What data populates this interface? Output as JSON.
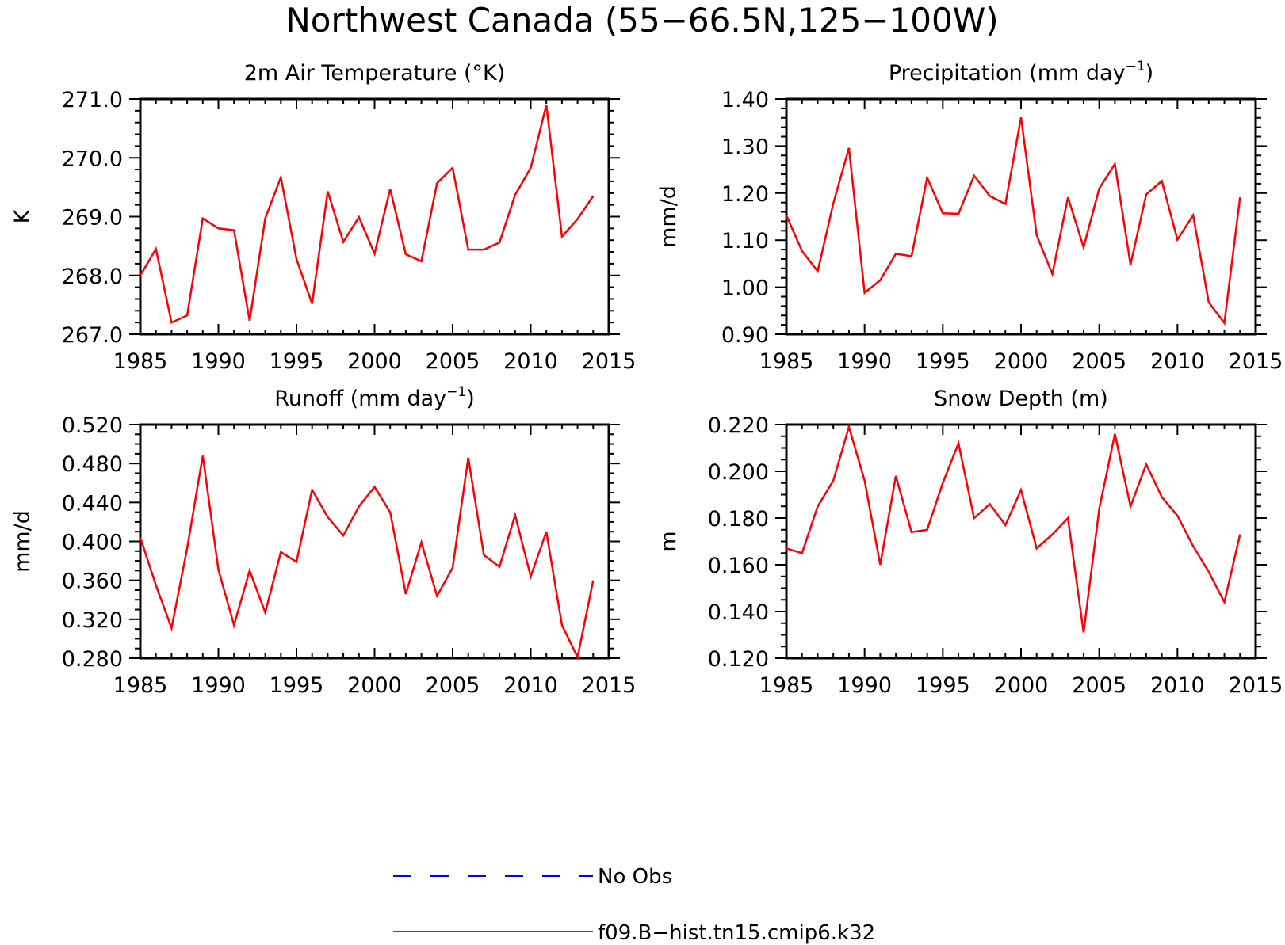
{
  "title": "Northwest Canada (55−66.5N,125−100W)",
  "colors": {
    "model": "#ff0000",
    "obs": "#0000ff",
    "axis": "#000000"
  },
  "legend": {
    "entries": [
      {
        "label": "No Obs",
        "color": "#0000ff",
        "style": "dashed"
      },
      {
        "label": "f09.B−hist.tn15.cmip6.k32",
        "color": "#ff0000",
        "style": "solid"
      }
    ]
  },
  "chart_data": [
    {
      "type": "line",
      "title": "2m Air Temperature (°K)",
      "title_main": "2m Air Temperature (°K)",
      "title_sup": "",
      "title_tail": "",
      "ylabel": "K",
      "xlim": [
        1985,
        2015
      ],
      "ylim": [
        267.0,
        271.0
      ],
      "xticks": [
        1985,
        1990,
        1995,
        2000,
        2005,
        2010,
        2015
      ],
      "yticks": [
        "267.0",
        "268.0",
        "269.0",
        "270.0",
        "271.0"
      ],
      "ytick_values": [
        267.0,
        268.0,
        269.0,
        270.0,
        271.0
      ],
      "yminor_per_major": 5,
      "series": [
        {
          "x": [
            1985,
            1986,
            1987,
            1988,
            1989,
            1990,
            1991,
            1992,
            1993,
            1994,
            1995,
            1996,
            1997,
            1998,
            1999,
            2000,
            2001,
            2002,
            2003,
            2004,
            2005,
            2006,
            2007,
            2008,
            2009,
            2010,
            2011,
            2012,
            2013,
            2014
          ],
          "values": [
            268.0,
            268.45,
            267.2,
            267.32,
            268.97,
            268.8,
            268.77,
            267.23,
            268.97,
            269.67,
            268.28,
            267.52,
            269.43,
            268.57,
            268.99,
            268.37,
            269.47,
            268.36,
            268.24,
            269.57,
            269.83,
            268.44,
            268.44,
            268.56,
            269.37,
            269.83,
            270.9,
            268.66,
            268.96,
            269.35
          ]
        }
      ]
    },
    {
      "type": "line",
      "title": "Precipitation (mm day⁻¹)",
      "title_main": "Precipitation (mm day",
      "title_sup": "−1",
      "title_tail": ")",
      "ylabel": "mm/d",
      "xlim": [
        1985,
        2015
      ],
      "ylim": [
        0.9,
        1.4
      ],
      "xticks": [
        1985,
        1990,
        1995,
        2000,
        2005,
        2010,
        2015
      ],
      "yticks": [
        "0.90",
        "1.00",
        "1.10",
        "1.20",
        "1.30",
        "1.40"
      ],
      "ytick_values": [
        0.9,
        1.0,
        1.1,
        1.2,
        1.3,
        1.4
      ],
      "yminor_per_major": 5,
      "series": [
        {
          "x": [
            1985,
            1986,
            1987,
            1988,
            1989,
            1990,
            1991,
            1992,
            1993,
            1994,
            1995,
            1996,
            1997,
            1998,
            1999,
            2000,
            2001,
            2002,
            2003,
            2004,
            2005,
            2006,
            2007,
            2008,
            2009,
            2010,
            2011,
            2012,
            2013,
            2014
          ],
          "values": [
            1.153,
            1.077,
            1.034,
            1.178,
            1.296,
            0.988,
            1.015,
            1.071,
            1.066,
            1.233,
            1.157,
            1.156,
            1.237,
            1.194,
            1.177,
            1.361,
            1.111,
            1.028,
            1.191,
            1.085,
            1.21,
            1.262,
            1.048,
            1.197,
            1.226,
            1.101,
            1.153,
            0.968,
            0.924,
            1.191
          ]
        }
      ]
    },
    {
      "type": "line",
      "title": "Runoff (mm day⁻¹)",
      "title_main": "Runoff (mm day",
      "title_sup": "−1",
      "title_tail": ")",
      "ylabel": "mm/d",
      "xlim": [
        1985,
        2015
      ],
      "ylim": [
        0.28,
        0.52
      ],
      "xticks": [
        1985,
        1990,
        1995,
        2000,
        2005,
        2010,
        2015
      ],
      "yticks": [
        "0.280",
        "0.320",
        "0.360",
        "0.400",
        "0.440",
        "0.480",
        "0.520"
      ],
      "ytick_values": [
        0.28,
        0.32,
        0.36,
        0.4,
        0.44,
        0.48,
        0.52
      ],
      "yminor_per_major": 4,
      "series": [
        {
          "x": [
            1985,
            1986,
            1987,
            1988,
            1989,
            1990,
            1991,
            1992,
            1993,
            1994,
            1995,
            1996,
            1997,
            1998,
            1999,
            2000,
            2001,
            2002,
            2003,
            2004,
            2005,
            2006,
            2007,
            2008,
            2009,
            2010,
            2011,
            2012,
            2013,
            2014
          ],
          "values": [
            0.404,
            0.355,
            0.311,
            0.393,
            0.488,
            0.371,
            0.314,
            0.37,
            0.327,
            0.389,
            0.379,
            0.453,
            0.425,
            0.406,
            0.436,
            0.456,
            0.43,
            0.346,
            0.399,
            0.344,
            0.373,
            0.486,
            0.386,
            0.374,
            0.427,
            0.364,
            0.41,
            0.314,
            0.281,
            0.36
          ]
        }
      ]
    },
    {
      "type": "line",
      "title": "Snow Depth (m)",
      "title_main": "Snow Depth (m)",
      "title_sup": "",
      "title_tail": "",
      "ylabel": "m",
      "xlim": [
        1985,
        2015
      ],
      "ylim": [
        0.12,
        0.22
      ],
      "xticks": [
        1985,
        1990,
        1995,
        2000,
        2005,
        2010,
        2015
      ],
      "yticks": [
        "0.120",
        "0.140",
        "0.160",
        "0.180",
        "0.200",
        "0.220"
      ],
      "ytick_values": [
        0.12,
        0.14,
        0.16,
        0.18,
        0.2,
        0.22
      ],
      "yminor_per_major": 4,
      "series": [
        {
          "x": [
            1985,
            1986,
            1987,
            1988,
            1989,
            1990,
            1991,
            1992,
            1993,
            1994,
            1995,
            1996,
            1997,
            1998,
            1999,
            2000,
            2001,
            2002,
            2003,
            2004,
            2005,
            2006,
            2007,
            2008,
            2009,
            2010,
            2011,
            2012,
            2013,
            2014
          ],
          "values": [
            0.167,
            0.165,
            0.185,
            0.196,
            0.219,
            0.196,
            0.16,
            0.198,
            0.174,
            0.175,
            0.195,
            0.212,
            0.18,
            0.186,
            0.177,
            0.192,
            0.167,
            0.173,
            0.18,
            0.131,
            0.184,
            0.216,
            0.185,
            0.203,
            0.189,
            0.181,
            0.168,
            0.157,
            0.144,
            0.173
          ]
        }
      ]
    }
  ]
}
